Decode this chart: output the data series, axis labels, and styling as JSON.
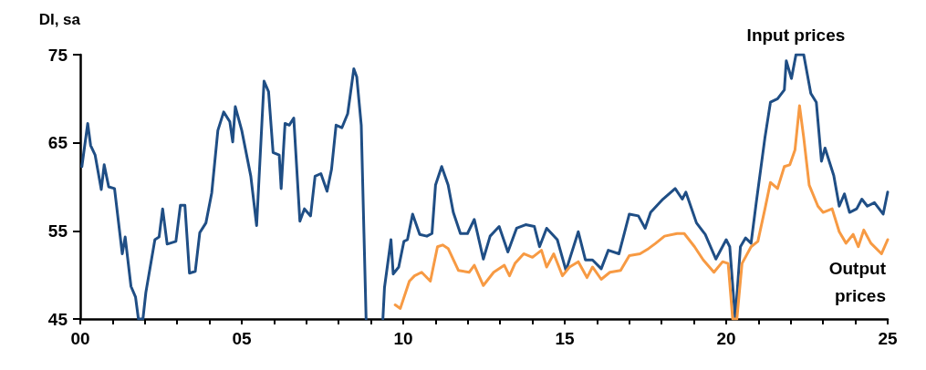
{
  "chart_data": {
    "type": "line",
    "ylabel": "DI, sa",
    "legend": false,
    "grid": false,
    "marker": "none",
    "line_style": "solid",
    "xlim": [
      2000,
      2025
    ],
    "ylim": [
      45,
      75
    ],
    "yticks": [
      45,
      55,
      65,
      75
    ],
    "xticks": [
      {
        "value": 2000,
        "label": "00"
      },
      {
        "value": 2001,
        "label": null
      },
      {
        "value": 2002,
        "label": null
      },
      {
        "value": 2003,
        "label": null
      },
      {
        "value": 2004,
        "label": null
      },
      {
        "value": 2005,
        "label": "05"
      },
      {
        "value": 2006,
        "label": null
      },
      {
        "value": 2007,
        "label": null
      },
      {
        "value": 2008,
        "label": null
      },
      {
        "value": 2009,
        "label": null
      },
      {
        "value": 2010,
        "label": "10"
      },
      {
        "value": 2011,
        "label": null
      },
      {
        "value": 2012,
        "label": null
      },
      {
        "value": 2013,
        "label": null
      },
      {
        "value": 2014,
        "label": null
      },
      {
        "value": 2015,
        "label": "15"
      },
      {
        "value": 2016,
        "label": null
      },
      {
        "value": 2017,
        "label": null
      },
      {
        "value": 2018,
        "label": null
      },
      {
        "value": 2019,
        "label": null
      },
      {
        "value": 2020,
        "label": "20"
      },
      {
        "value": 2021,
        "label": null
      },
      {
        "value": 2022,
        "label": null
      },
      {
        "value": 2023,
        "label": null
      },
      {
        "value": 2024,
        "label": null
      },
      {
        "value": 2025,
        "label": "25"
      }
    ],
    "series": [
      {
        "name": "Input prices",
        "color": "#1f4e85",
        "x": [
          2000.05,
          2000.23,
          2000.32,
          2000.46,
          2000.65,
          2000.74,
          2000.88,
          2001.06,
          2001.3,
          2001.39,
          2001.57,
          2001.71,
          2001.8,
          2001.94,
          2002.03,
          2002.31,
          2002.44,
          2002.55,
          2002.69,
          2002.96,
          2003.1,
          2003.24,
          2003.38,
          2003.56,
          2003.7,
          2003.89,
          2004.07,
          2004.26,
          2004.44,
          2004.63,
          2004.72,
          2004.8,
          2005.0,
          2005.28,
          2005.46,
          2005.69,
          2005.83,
          2005.97,
          2006.16,
          2006.22,
          2006.34,
          2006.47,
          2006.61,
          2006.8,
          2006.94,
          2007.13,
          2007.27,
          2007.45,
          2007.64,
          2007.78,
          2007.92,
          2008.1,
          2008.28,
          2008.47,
          2008.56,
          2008.7,
          2008.85,
          2009.1,
          2009.37,
          2009.42,
          2009.62,
          2009.69,
          2009.86,
          2010.02,
          2010.13,
          2010.29,
          2010.51,
          2010.73,
          2010.89,
          2011.0,
          2011.19,
          2011.39,
          2011.55,
          2011.77,
          2011.99,
          2012.2,
          2012.48,
          2012.69,
          2012.97,
          2013.24,
          2013.51,
          2013.79,
          2014.06,
          2014.22,
          2014.44,
          2014.77,
          2015.04,
          2015.42,
          2015.64,
          2015.86,
          2016.13,
          2016.35,
          2016.68,
          2017.0,
          2017.28,
          2017.49,
          2017.66,
          2018.04,
          2018.42,
          2018.64,
          2018.75,
          2019.08,
          2019.35,
          2019.68,
          2020.0,
          2020.11,
          2020.28,
          2020.44,
          2020.6,
          2020.77,
          2020.93,
          2021.2,
          2021.37,
          2021.59,
          2021.8,
          2021.86,
          2022.02,
          2022.16,
          2022.4,
          2022.62,
          2022.79,
          2022.95,
          2023.06,
          2023.33,
          2023.5,
          2023.66,
          2023.82,
          2024.04,
          2024.2,
          2024.37,
          2024.59,
          2024.86,
          2025.0
        ],
        "values": [
          62.3,
          67.2,
          64.7,
          63.6,
          59.7,
          62.5,
          60,
          59.8,
          52.4,
          54.3,
          48.7,
          47.5,
          45,
          45,
          48,
          54,
          54.3,
          57.5,
          53.5,
          53.8,
          57.9,
          57.9,
          50.2,
          50.4,
          54.8,
          55.9,
          59.3,
          66.4,
          68.5,
          67.4,
          65.1,
          69.1,
          66.4,
          61.2,
          55.6,
          72,
          70.8,
          63.9,
          63.6,
          59.8,
          67.2,
          67,
          67.8,
          56.1,
          57.5,
          56.7,
          61.2,
          61.5,
          59.5,
          62,
          67,
          66.7,
          68.3,
          73.4,
          72.5,
          67,
          45,
          null,
          45,
          48.6,
          54,
          50.1,
          50.9,
          53.8,
          54,
          56.9,
          54.6,
          54.4,
          54.7,
          60.2,
          62.3,
          60.2,
          57.1,
          54.7,
          54.7,
          56.3,
          51.8,
          54.4,
          55.5,
          52.6,
          55.3,
          55.7,
          55.5,
          53.2,
          55.3,
          54,
          50.5,
          54.9,
          51.7,
          51.7,
          50.7,
          52.8,
          52.4,
          56.9,
          56.7,
          55.3,
          57.1,
          58.6,
          59.8,
          58.6,
          59.4,
          55.9,
          54.6,
          51.8,
          54,
          53.2,
          45,
          53.2,
          54.2,
          53.6,
          58.2,
          65.6,
          69.6,
          70,
          71,
          74.3,
          72.3,
          75,
          75,
          70.6,
          69.6,
          62.9,
          64.4,
          61.3,
          57.8,
          59.2,
          57.1,
          57.5,
          58.6,
          57.8,
          58.2,
          56.9,
          59.4
        ]
      },
      {
        "name": "Output prices",
        "color": "#f79a43",
        "x": [
          2009.75,
          2009.91,
          2010.19,
          2010.35,
          2010.57,
          2010.84,
          2011.06,
          2011.22,
          2011.39,
          2011.71,
          2012.04,
          2012.2,
          2012.48,
          2012.8,
          2013.13,
          2013.29,
          2013.46,
          2013.73,
          2014.0,
          2014.28,
          2014.44,
          2014.66,
          2014.93,
          2015.15,
          2015.42,
          2015.69,
          2015.86,
          2016.13,
          2016.4,
          2016.73,
          2017.0,
          2017.33,
          2017.6,
          2017.82,
          2018.09,
          2018.48,
          2018.7,
          2019.02,
          2019.29,
          2019.62,
          2019.89,
          2020.06,
          2020.2,
          2020.33,
          2020.49,
          2020.77,
          2020.98,
          2021.2,
          2021.37,
          2021.59,
          2021.8,
          2021.97,
          2022.13,
          2022.27,
          2022.4,
          2022.57,
          2022.84,
          2023.0,
          2023.28,
          2023.5,
          2023.71,
          2023.93,
          2024.09,
          2024.26,
          2024.48,
          2024.81,
          2025.0
        ],
        "values": [
          46.6,
          46.2,
          49.3,
          49.9,
          50.3,
          49.3,
          53.2,
          53.4,
          53,
          50.5,
          50.3,
          51.1,
          48.8,
          50.3,
          51.1,
          49.9,
          51.3,
          52.4,
          52,
          52.8,
          50.9,
          52.4,
          49.9,
          50.9,
          51.5,
          49.7,
          50.9,
          49.5,
          50.3,
          50.5,
          52.2,
          52.4,
          53,
          53.6,
          54.4,
          54.7,
          54.7,
          53.2,
          51.7,
          50.3,
          51.5,
          51.3,
          45,
          45,
          51.3,
          53.2,
          53.8,
          57.5,
          60.5,
          59.8,
          62.3,
          62.5,
          64.2,
          69.2,
          65.6,
          60.2,
          57.8,
          57.1,
          57.5,
          54.9,
          53.6,
          54.6,
          53.2,
          55.1,
          53.6,
          52.4,
          54
        ]
      }
    ]
  }
}
